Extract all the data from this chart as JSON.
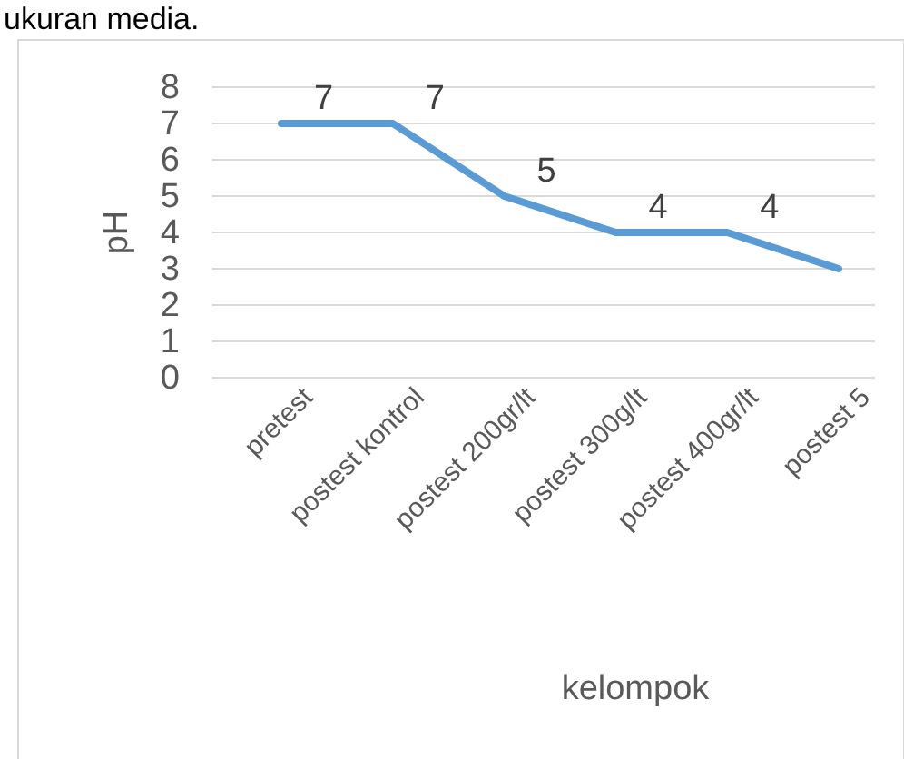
{
  "chart_data": {
    "type": "line",
    "xlabel": "kelompok",
    "ylabel": "pH",
    "annotations": [
      "ukuran media."
    ],
    "categories": [
      "pretest",
      "postest kontrol",
      "postest 200gr/lt",
      "postest 300g/lt",
      "postest 400gr/lt",
      "postest 5"
    ],
    "series": [
      {
        "color": "#5b9bd5",
        "values": [
          7,
          7,
          5,
          4,
          4,
          3
        ],
        "value_labels": [
          "7",
          "7",
          "5",
          "4",
          "4",
          null
        ]
      }
    ],
    "ylim": [
      0,
      8
    ],
    "yticks": [
      0,
      1,
      2,
      3,
      4,
      5,
      6,
      7,
      8
    ],
    "grid": "y",
    "marker": "none",
    "line_style": "solid"
  }
}
